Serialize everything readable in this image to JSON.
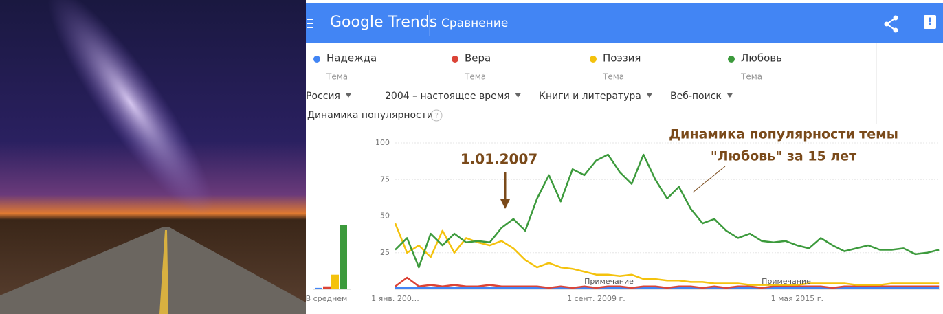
{
  "header": {
    "logo": "Google Trends",
    "section": "Сравнение"
  },
  "filters": [
    "Россия",
    "2004 – настоящее время",
    "Книги и литература",
    "Веб-поиск"
  ],
  "chart_data": {
    "type": "line",
    "title": "Динамика популярности",
    "average_label": "В среднем",
    "categories": [
      "1 янв. 200…",
      null,
      null,
      null,
      null,
      null,
      null,
      null,
      null,
      null,
      null,
      null,
      null,
      null,
      null,
      null,
      null,
      "1 сент. 2009 г.",
      null,
      null,
      null,
      null,
      null,
      null,
      null,
      null,
      null,
      null,
      null,
      null,
      null,
      null,
      null,
      null,
      "1 мая 2015 г.",
      null,
      null,
      null,
      null,
      null,
      null,
      null,
      null,
      null,
      null,
      null,
      null
    ],
    "ylim": [
      0,
      100
    ],
    "yticks": [
      25,
      50,
      75,
      100
    ],
    "grid": true,
    "series": [
      {
        "name": "Надежда",
        "kind": "Тема",
        "color": "#4285f4",
        "average": 1,
        "values": [
          1,
          1,
          1,
          1,
          1,
          1,
          1,
          1,
          1,
          1,
          1,
          1,
          1,
          1,
          1,
          1,
          1,
          1,
          1,
          1,
          1,
          1,
          1,
          1,
          1,
          1,
          1,
          1,
          1,
          1,
          1,
          1,
          1,
          1,
          1,
          1,
          1,
          1,
          1,
          1,
          1,
          1,
          1,
          1,
          1,
          1,
          1
        ]
      },
      {
        "name": "Вера",
        "kind": "Тема",
        "color": "#db4437",
        "average": 2,
        "values": [
          2,
          8,
          2,
          3,
          2,
          3,
          2,
          2,
          3,
          2,
          2,
          2,
          2,
          1,
          2,
          1,
          2,
          1,
          2,
          2,
          1,
          2,
          2,
          1,
          2,
          2,
          1,
          2,
          1,
          2,
          2,
          1,
          2,
          2,
          2,
          2,
          2,
          1,
          2,
          2,
          2,
          2,
          2,
          2,
          2,
          2,
          2
        ]
      },
      {
        "name": "Поэзия",
        "kind": "Тема",
        "color": "#f4c20d",
        "average": 10,
        "values": [
          45,
          25,
          30,
          22,
          40,
          25,
          35,
          32,
          30,
          33,
          28,
          20,
          15,
          18,
          15,
          14,
          12,
          10,
          10,
          9,
          10,
          7,
          7,
          6,
          6,
          5,
          5,
          4,
          4,
          4,
          3,
          3,
          3,
          3,
          3,
          4,
          4,
          4,
          4,
          3,
          3,
          3,
          4,
          4,
          4,
          4,
          4
        ]
      },
      {
        "name": "Любовь",
        "kind": "Тема",
        "color": "#3c9a3c",
        "average": 44,
        "values": [
          27,
          35,
          15,
          38,
          30,
          38,
          32,
          33,
          32,
          42,
          48,
          40,
          62,
          78,
          60,
          82,
          78,
          88,
          92,
          80,
          72,
          92,
          75,
          62,
          70,
          55,
          45,
          48,
          40,
          35,
          38,
          33,
          32,
          33,
          30,
          28,
          35,
          30,
          26,
          28,
          30,
          27,
          27,
          28,
          24,
          25,
          27
        ]
      }
    ],
    "notes": [
      "Примечание",
      "Примечание"
    ],
    "annotations": {
      "date": "1.01.2007",
      "caption": [
        "Динамика популярности темы",
        "\"Любовь\" за 15 лет"
      ]
    }
  }
}
